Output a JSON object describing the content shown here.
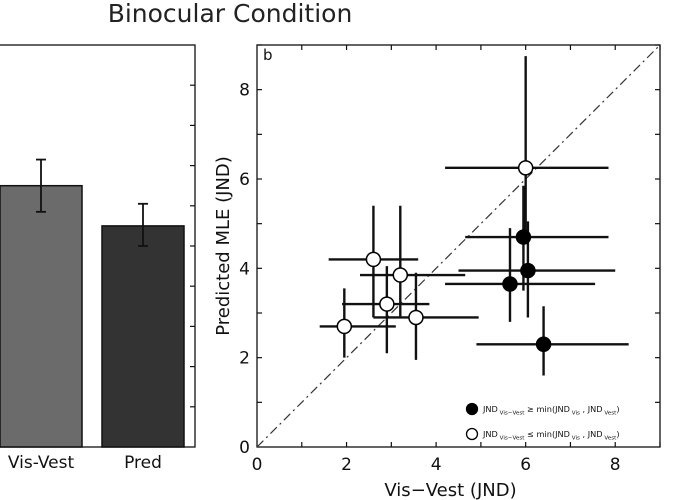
{
  "figure_title": "Binocular Condition",
  "chart_data": [
    {
      "type": "bar",
      "categories": [
        "Vis-Vest",
        "Pred"
      ],
      "values": [
        6.5,
        5.5
      ],
      "errors": [
        [
          5.85,
          7.15
        ],
        [
          5.0,
          6.05
        ]
      ],
      "colors": [
        "#6b6b6b",
        "#333333"
      ],
      "ylim": [
        0,
        10
      ]
    },
    {
      "type": "scatter",
      "panel_label": "b",
      "xlabel": "Vis−Vest (JND)",
      "ylabel": "Predicted MLE (JND)",
      "xlim": [
        0,
        9
      ],
      "ylim": [
        0,
        9
      ],
      "xticks": [
        0,
        2,
        4,
        6,
        8
      ],
      "yticks": [
        0,
        2,
        4,
        6,
        8
      ],
      "reference_line": "identity (dash-dot)",
      "legend_position": "bottom-right",
      "series": [
        {
          "name": "JND Vis−Vest ≥ min(JND Vis , JND Vest)",
          "legend": {
            "pre": "JND",
            "sub1": "Vis−Vest",
            "mid": " ≥ min(JND",
            "sub2": "Vis",
            "sep": " , JND",
            "sub3": "Vest",
            "post": ")"
          },
          "marker": "filled",
          "points": [
            {
              "x": 5.95,
              "y": 4.7,
              "xerr": [
                4.65,
                7.85
              ],
              "yerr": [
                3.5,
                5.85
              ]
            },
            {
              "x": 6.05,
              "y": 3.95,
              "xerr": [
                4.5,
                8.0
              ],
              "yerr": [
                2.9,
                5.05
              ]
            },
            {
              "x": 5.65,
              "y": 3.65,
              "xerr": [
                4.2,
                7.55
              ],
              "yerr": [
                2.8,
                4.9
              ]
            },
            {
              "x": 6.4,
              "y": 2.3,
              "xerr": [
                4.9,
                8.3
              ],
              "yerr": [
                1.6,
                3.15
              ]
            }
          ]
        },
        {
          "name": "JND Vis−Vest ≤ min(JND Vis , JND Vest)",
          "legend": {
            "pre": "JND",
            "sub1": "Vis−Vest",
            "mid": " ≤ min(JND",
            "sub2": "Vis",
            "sep": " , JND",
            "sub3": "Vest",
            "post": ")"
          },
          "marker": "open",
          "points": [
            {
              "x": 6.0,
              "y": 6.25,
              "xerr": [
                4.2,
                7.85
              ],
              "yerr": [
                4.55,
                8.75
              ]
            },
            {
              "x": 2.6,
              "y": 4.2,
              "xerr": [
                1.6,
                3.6
              ],
              "yerr": [
                2.9,
                5.4
              ]
            },
            {
              "x": 3.2,
              "y": 3.85,
              "xerr": [
                2.3,
                4.65
              ],
              "yerr": [
                2.9,
                5.4
              ]
            },
            {
              "x": 2.9,
              "y": 3.2,
              "xerr": [
                1.9,
                3.85
              ],
              "yerr": [
                2.1,
                4.05
              ]
            },
            {
              "x": 3.55,
              "y": 2.9,
              "xerr": [
                2.6,
                4.95
              ],
              "yerr": [
                1.95,
                3.9
              ]
            },
            {
              "x": 1.95,
              "y": 2.7,
              "xerr": [
                1.4,
                3.1
              ],
              "yerr": [
                2.0,
                3.55
              ]
            }
          ]
        }
      ]
    }
  ]
}
